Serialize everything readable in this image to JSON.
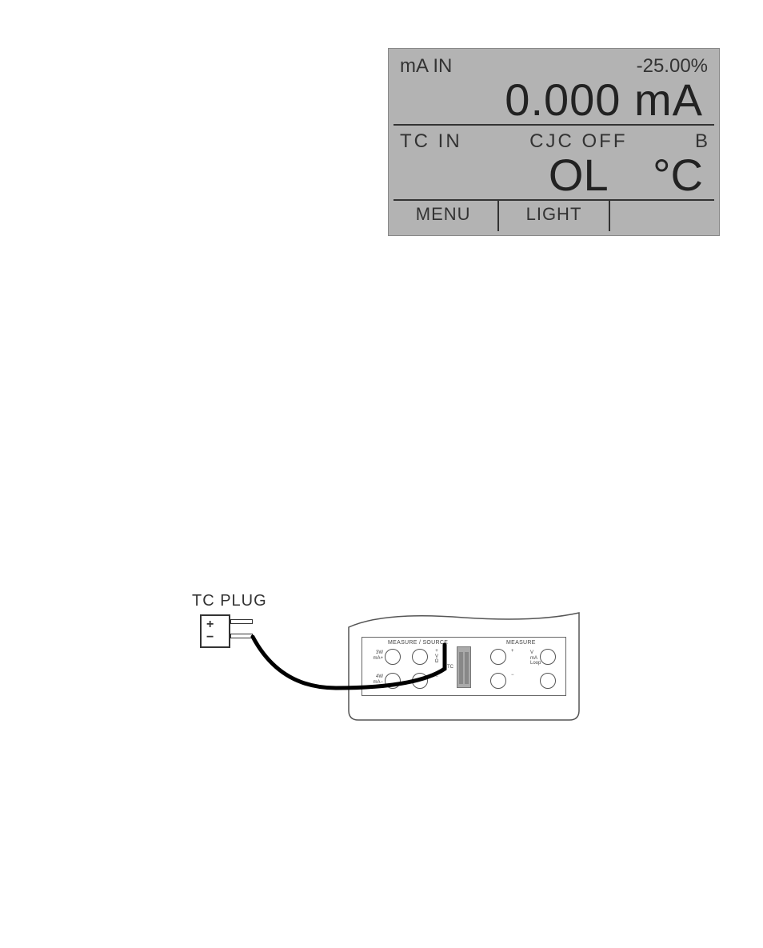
{
  "lcd": {
    "row1_left": "mA IN",
    "row1_right": "-25.00%",
    "row2_value": "0.000 mA",
    "row3_left": "TC  IN",
    "row3_mid": "CJC  OFF",
    "row3_right": "B",
    "row4_value": "OL",
    "row4_unit": "°C",
    "menu_label": "MENU",
    "light_label": "LIGHT",
    "bg_color": "#b3b3b3",
    "text_color": "#333333",
    "divider_color": "#333333",
    "main_fontsize": 56,
    "small_fontsize": 24,
    "bottom_fontsize": 22
  },
  "diagram": {
    "tc_plug_label": "TC PLUG",
    "plus": "+",
    "minus": "−",
    "device": {
      "section1": "MEASURE / SOURCE",
      "section2": "MEASURE",
      "j1_label": "3W\nmA+",
      "j2_label": "4W\nmA−",
      "mid_top": "+\nV\nΩ",
      "mid_bot": "−",
      "tc_label": "TC",
      "r_top_sign": "+",
      "r_bot_sign": "−",
      "r_top_label": "V\nmA\nLoop",
      "r_bot_label": ""
    },
    "cable_color": "#000000",
    "outline_color": "#555555",
    "jack_border": "#555555"
  }
}
